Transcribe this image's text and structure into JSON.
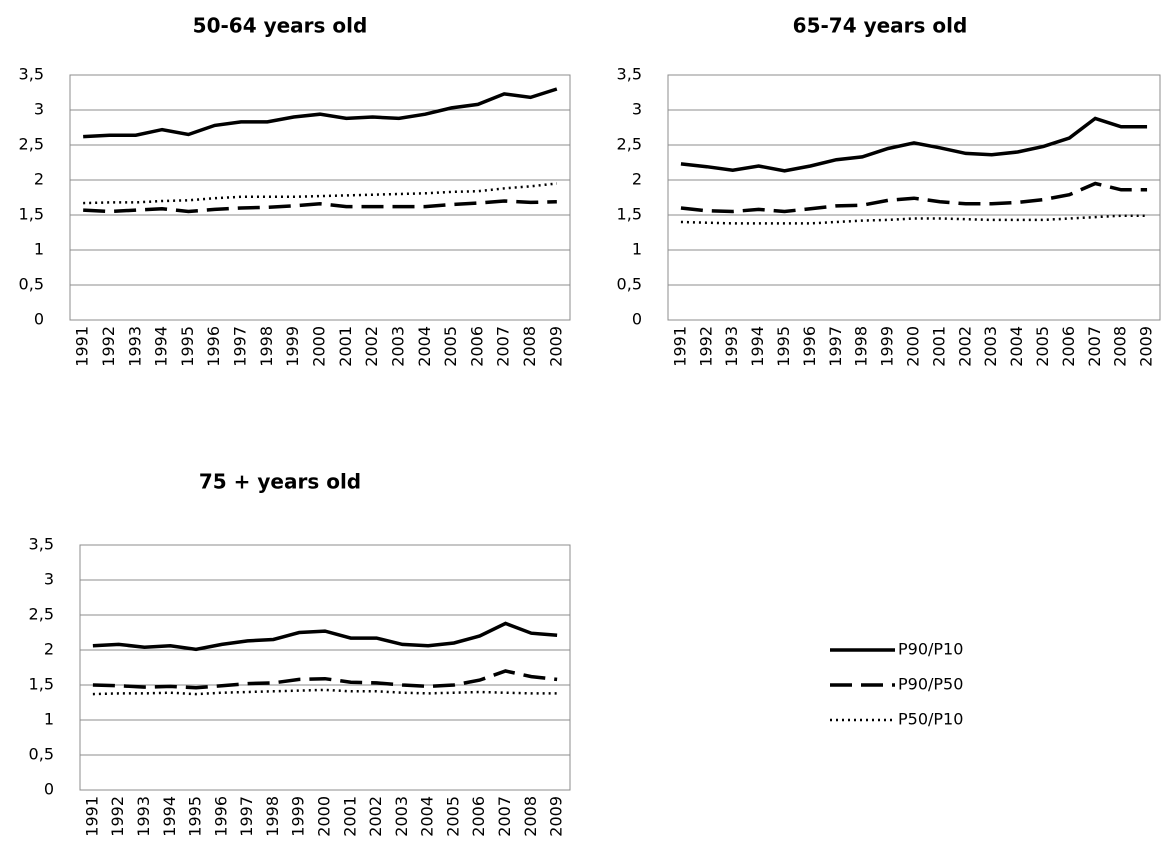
{
  "chart_data": [
    {
      "type": "line",
      "title": "50-64 years old",
      "categories": [
        "1991",
        "1992",
        "1993",
        "1994",
        "1995",
        "1996",
        "1997",
        "1998",
        "1999",
        "2000",
        "2001",
        "2002",
        "2003",
        "2004",
        "2005",
        "2006",
        "2007",
        "2008",
        "2009"
      ],
      "ylim": [
        0,
        3.5
      ],
      "yticks": [
        0,
        {
          "value": 0.5,
          "label": "0,5"
        },
        1,
        {
          "value": 1.5,
          "label": "1,5"
        },
        2,
        {
          "value": 2.5,
          "label": "2,5"
        },
        3,
        {
          "value": 3.5,
          "label": "3,5"
        }
      ],
      "grid": true,
      "series": [
        {
          "name": "P90/P10",
          "color": "#000000",
          "dash": "solid",
          "values": [
            2.62,
            2.64,
            2.64,
            2.72,
            2.65,
            2.78,
            2.83,
            2.83,
            2.9,
            2.94,
            2.88,
            2.9,
            2.88,
            2.94,
            3.03,
            3.08,
            3.23,
            3.18,
            3.3
          ]
        },
        {
          "name": "P90/P50",
          "color": "#000000",
          "dash": "dash",
          "values": [
            1.57,
            1.55,
            1.57,
            1.59,
            1.55,
            1.58,
            1.6,
            1.61,
            1.63,
            1.66,
            1.62,
            1.62,
            1.62,
            1.62,
            1.65,
            1.67,
            1.7,
            1.68,
            1.69
          ]
        },
        {
          "name": "P50/P10",
          "color": "#000000",
          "dash": "dot",
          "values": [
            1.67,
            1.68,
            1.68,
            1.7,
            1.71,
            1.74,
            1.76,
            1.76,
            1.76,
            1.77,
            1.78,
            1.79,
            1.8,
            1.81,
            1.83,
            1.84,
            1.88,
            1.91,
            1.95
          ]
        }
      ]
    },
    {
      "type": "line",
      "title": "65-74 years old",
      "categories": [
        "1991",
        "1992",
        "1993",
        "1994",
        "1995",
        "1996",
        "1997",
        "1998",
        "1999",
        "2000",
        "2001",
        "2002",
        "2003",
        "2004",
        "2005",
        "2006",
        "2007",
        "2008",
        "2009"
      ],
      "ylim": [
        0,
        3.5
      ],
      "yticks": [
        0,
        {
          "value": 0.5,
          "label": "0,5"
        },
        1,
        {
          "value": 1.5,
          "label": "1,5"
        },
        2,
        {
          "value": 2.5,
          "label": "2,5"
        },
        3,
        {
          "value": 3.5,
          "label": "3,5"
        }
      ],
      "grid": true,
      "series": [
        {
          "color": "#000000",
          "dash": "solid",
          "values": [
            2.23,
            2.19,
            2.14,
            2.2,
            2.13,
            2.2,
            2.29,
            2.33,
            2.45,
            2.53,
            2.46,
            2.38,
            2.36,
            2.4,
            2.48,
            2.6,
            2.88,
            2.76,
            2.76
          ]
        },
        {
          "color": "#000000",
          "dash": "dash",
          "values": [
            1.6,
            1.56,
            1.55,
            1.58,
            1.55,
            1.59,
            1.63,
            1.64,
            1.71,
            1.74,
            1.69,
            1.66,
            1.66,
            1.68,
            1.72,
            1.79,
            1.95,
            1.86,
            1.86
          ]
        },
        {
          "color": "#000000",
          "dash": "dot",
          "values": [
            1.4,
            1.39,
            1.38,
            1.38,
            1.38,
            1.38,
            1.4,
            1.42,
            1.43,
            1.45,
            1.45,
            1.44,
            1.43,
            1.43,
            1.43,
            1.45,
            1.47,
            1.49,
            1.49
          ]
        }
      ]
    },
    {
      "type": "line",
      "title": "75 + years old",
      "categories": [
        "1991",
        "1992",
        "1993",
        "1994",
        "1995",
        "1996",
        "1997",
        "1998",
        "1999",
        "2000",
        "2001",
        "2002",
        "2003",
        "2004",
        "2005",
        "2006",
        "2007",
        "2008",
        "2009"
      ],
      "ylim": [
        0,
        3.5
      ],
      "yticks": [
        0,
        {
          "value": 0.5,
          "label": "0,5"
        },
        1,
        {
          "value": 1.5,
          "label": "1,5"
        },
        2,
        {
          "value": 2.5,
          "label": "2,5"
        },
        3,
        {
          "value": 3.5,
          "label": "3,5"
        }
      ],
      "grid": true,
      "series": [
        {
          "color": "#000000",
          "dash": "solid",
          "values": [
            2.06,
            2.08,
            2.04,
            2.06,
            2.01,
            2.08,
            2.13,
            2.15,
            2.25,
            2.27,
            2.17,
            2.17,
            2.08,
            2.06,
            2.1,
            2.2,
            2.38,
            2.24,
            2.21
          ]
        },
        {
          "color": "#000000",
          "dash": "dash",
          "values": [
            1.5,
            1.49,
            1.47,
            1.48,
            1.46,
            1.49,
            1.52,
            1.53,
            1.58,
            1.59,
            1.54,
            1.53,
            1.5,
            1.48,
            1.5,
            1.57,
            1.7,
            1.62,
            1.58
          ]
        },
        {
          "color": "#000000",
          "dash": "dot",
          "values": [
            1.37,
            1.38,
            1.38,
            1.39,
            1.37,
            1.39,
            1.4,
            1.41,
            1.42,
            1.43,
            1.41,
            1.41,
            1.39,
            1.38,
            1.39,
            1.4,
            1.39,
            1.38,
            1.38
          ]
        }
      ]
    }
  ]
}
